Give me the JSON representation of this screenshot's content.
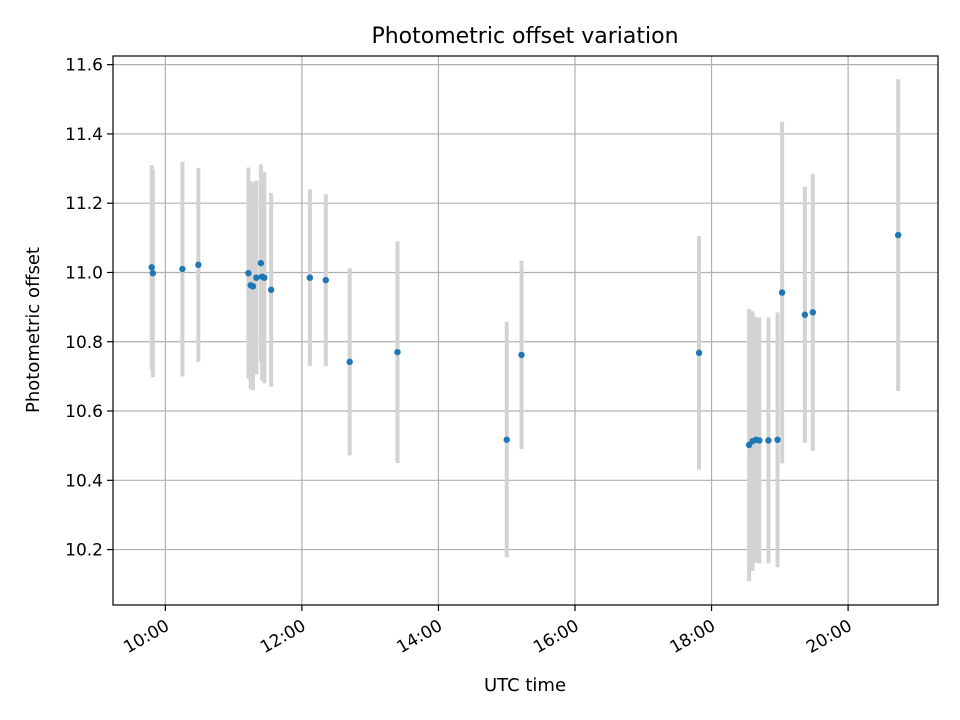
{
  "chart_data": {
    "type": "scatter",
    "title": "Photometric offset variation",
    "xlabel": "UTC time",
    "ylabel": "Photometric offset",
    "xlim": [
      "09:14",
      "21:19"
    ],
    "ylim": [
      10.04,
      11.625
    ],
    "x_ticks": [
      "10:00",
      "12:00",
      "14:00",
      "16:00",
      "18:00",
      "20:00"
    ],
    "y_ticks": [
      "10.2",
      "10.4",
      "10.6",
      "10.8",
      "11.0",
      "11.2",
      "11.4",
      "11.6"
    ],
    "grid": true,
    "x_tick_rotation": "30 degrees",
    "colors": {
      "marker": "#1f77b4",
      "errorbar": "#d3d3d3",
      "grid": "#b0b0b0",
      "axes": "#000000"
    },
    "series": [
      {
        "x": [
          "09:48",
          "09:49",
          "10:15",
          "10:29",
          "11:13",
          "11:15",
          "11:17",
          "11:20",
          "11:24",
          "11:25",
          "11:27",
          "11:33",
          "12:07",
          "12:21",
          "12:42",
          "13:24",
          "15:00",
          "15:13",
          "17:49",
          "18:33",
          "18:36",
          "18:39",
          "18:42",
          "18:50",
          "18:58",
          "19:02",
          "19:22",
          "19:29",
          "20:44"
        ],
        "y": [
          11.015,
          10.998,
          11.01,
          11.022,
          10.998,
          10.963,
          10.96,
          10.985,
          11.027,
          10.988,
          10.985,
          10.95,
          10.985,
          10.978,
          10.742,
          10.77,
          10.517,
          10.762,
          10.768,
          10.502,
          10.513,
          10.517,
          10.515,
          10.515,
          10.517,
          10.942,
          10.878,
          10.885,
          11.108
        ],
        "yerr": [
          0.295,
          0.3,
          0.31,
          0.28,
          0.305,
          0.3,
          0.3,
          0.28,
          0.285,
          0.3,
          0.305,
          0.28,
          0.255,
          0.248,
          0.27,
          0.32,
          0.34,
          0.272,
          0.337,
          0.393,
          0.375,
          0.355,
          0.355,
          0.355,
          0.368,
          0.493,
          0.37,
          0.4,
          0.45
        ]
      }
    ]
  }
}
